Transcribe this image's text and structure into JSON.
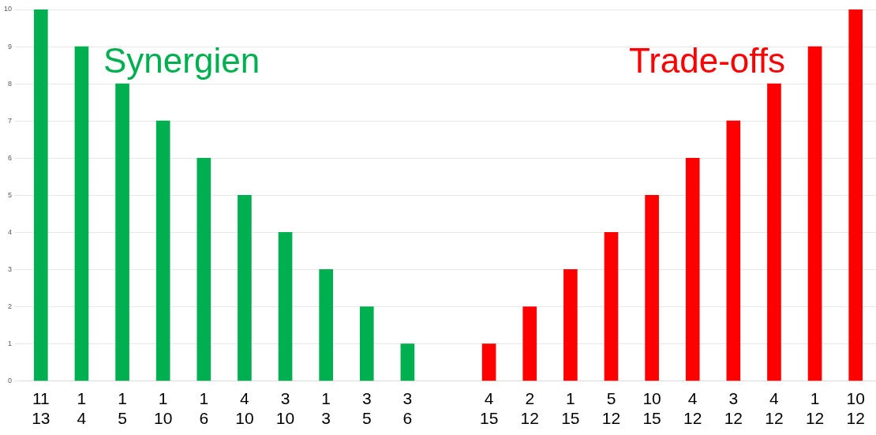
{
  "chart_data": {
    "type": "bar",
    "categories": [
      "11\n13",
      "1\n4",
      "1\n5",
      "1\n10",
      "1\n6",
      "4\n10",
      "3\n10",
      "1\n3",
      "3\n5",
      "3\n6",
      null,
      "4\n15",
      "2\n12",
      "1\n15",
      "5\n12",
      "10\n15",
      "4\n12",
      "3\n12",
      "4\n12",
      "1\n12",
      "10\n12"
    ],
    "series": [
      {
        "color": "#00b050",
        "values": [
          10,
          9,
          8,
          7,
          6,
          5,
          4,
          3,
          2,
          1,
          null,
          null,
          null,
          null,
          null,
          null,
          null,
          null,
          null,
          null,
          null
        ]
      },
      {
        "color": "#ff0000",
        "values": [
          null,
          null,
          null,
          null,
          null,
          null,
          null,
          null,
          null,
          null,
          null,
          1,
          2,
          3,
          4,
          5,
          6,
          7,
          8,
          9,
          10
        ]
      }
    ],
    "annotations": [
      "Synergien",
      "Trade-offs"
    ],
    "ylim": [
      0,
      10
    ],
    "yticks": [
      0,
      1,
      2,
      3,
      4,
      5,
      6,
      7,
      8,
      9,
      10
    ],
    "grid": "y",
    "legend": false
  }
}
